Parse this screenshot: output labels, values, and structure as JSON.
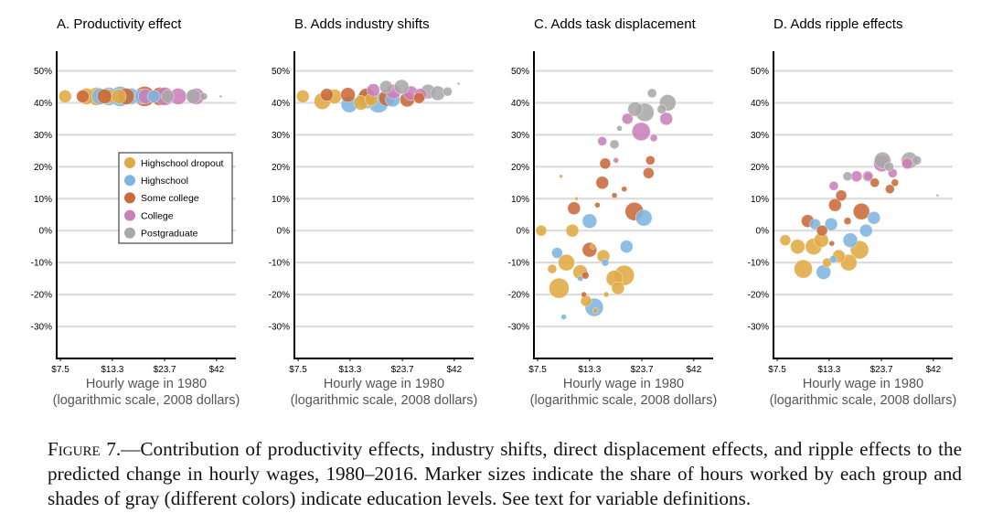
{
  "figure": {
    "caption_label": "Figure 7.",
    "caption_text": "—Contribution of productivity effects, industry shifts, direct displacement effects, and ripple effects to the predicted change in hourly wages, 1980–2016. Marker sizes indicate the share of hours worked by each group and shades of gray (different colors) indicate education levels. See text for variable definitions."
  },
  "colors": {
    "Highschool dropout": "#e0aa43",
    "Highschool": "#7fb5e0",
    "Some college": "#c86a3a",
    "College": "#c97fb7",
    "Postgraduate": "#a9a9a9",
    "grid": "#dcdcdc",
    "axis": "#000000"
  },
  "chart_data": [
    {
      "type": "scatter",
      "title": "A. Productivity effect",
      "xlabel": "Hourly wage in 1980",
      "xlabel2": "(logarithmic scale, 2008 dollars)",
      "x_scale": "log",
      "x_ticks": [
        7.5,
        13.3,
        23.7,
        42
      ],
      "x_tick_labels": [
        "$7.5",
        "$13.3",
        "$23.7",
        "$42"
      ],
      "y_ticks": [
        -30,
        -20,
        -10,
        0,
        10,
        20,
        30,
        40,
        50
      ],
      "y_tick_labels": [
        "-30%",
        "-20%",
        "-10%",
        "0%",
        "10%",
        "20%",
        "30%",
        "40%",
        "50%"
      ],
      "ylim": [
        -40,
        55
      ],
      "xlim": [
        7.2,
        52
      ],
      "grid": true,
      "legend": {
        "position": "center-left",
        "entries": [
          "Highschool dropout",
          "Highschool",
          "Some college",
          "College",
          "Postgraduate"
        ]
      },
      "series": [
        {
          "name": "Highschool dropout",
          "points": [
            {
              "x": 7.9,
              "y": 42,
              "s": 7
            },
            {
              "x": 10.0,
              "y": 42,
              "s": 9
            },
            {
              "x": 11.2,
              "y": 42,
              "s": 10
            },
            {
              "x": 12.7,
              "y": 42,
              "s": 8
            },
            {
              "x": 14.3,
              "y": 42,
              "s": 8
            }
          ]
        },
        {
          "name": "Highschool",
          "points": [
            {
              "x": 11.6,
              "y": 42,
              "s": 9
            },
            {
              "x": 12.8,
              "y": 42,
              "s": 10
            },
            {
              "x": 14.5,
              "y": 42,
              "s": 11
            },
            {
              "x": 16.3,
              "y": 42,
              "s": 9
            },
            {
              "x": 18.5,
              "y": 42,
              "s": 8
            },
            {
              "x": 21.0,
              "y": 42,
              "s": 7
            }
          ]
        },
        {
          "name": "Some college",
          "points": [
            {
              "x": 9.6,
              "y": 42,
              "s": 7
            },
            {
              "x": 12.2,
              "y": 42,
              "s": 8
            },
            {
              "x": 15.5,
              "y": 42,
              "s": 9
            },
            {
              "x": 19.0,
              "y": 42,
              "s": 11
            },
            {
              "x": 22.5,
              "y": 42,
              "s": 10
            }
          ]
        },
        {
          "name": "College",
          "points": [
            {
              "x": 19.2,
              "y": 42,
              "s": 8
            },
            {
              "x": 23.7,
              "y": 42,
              "s": 10
            },
            {
              "x": 27.5,
              "y": 42,
              "s": 9
            },
            {
              "x": 33.5,
              "y": 42,
              "s": 9
            }
          ]
        },
        {
          "name": "Postgraduate",
          "points": [
            {
              "x": 24.5,
              "y": 42,
              "s": 7
            },
            {
              "x": 32.5,
              "y": 42,
              "s": 8
            },
            {
              "x": 36.5,
              "y": 42,
              "s": 4
            },
            {
              "x": 44.0,
              "y": 42,
              "s": 1.5
            }
          ]
        }
      ]
    },
    {
      "type": "scatter",
      "title": "B. Adds industry shifts",
      "xlabel": "Hourly wage in 1980",
      "xlabel2": "(logarithmic scale, 2008 dollars)",
      "x_scale": "log",
      "x_ticks": [
        7.5,
        13.3,
        23.7,
        42
      ],
      "x_tick_labels": [
        "$7.5",
        "$13.3",
        "$23.7",
        "$42"
      ],
      "y_ticks": [
        -30,
        -20,
        -10,
        0,
        10,
        20,
        30,
        40,
        50
      ],
      "y_tick_labels": [
        "-30%",
        "-20%",
        "-10%",
        "0%",
        "10%",
        "20%",
        "30%",
        "40%",
        "50%"
      ],
      "ylim": [
        -40,
        55
      ],
      "xlim": [
        7.2,
        52
      ],
      "grid": true,
      "series": [
        {
          "name": "Highschool dropout",
          "points": [
            {
              "x": 7.9,
              "y": 42,
              "s": 7
            },
            {
              "x": 9.8,
              "y": 40.5,
              "s": 9
            },
            {
              "x": 11.2,
              "y": 42,
              "s": 8
            },
            {
              "x": 15.0,
              "y": 40,
              "s": 8
            },
            {
              "x": 16.8,
              "y": 41,
              "s": 7
            }
          ]
        },
        {
          "name": "Highschool",
          "points": [
            {
              "x": 13.2,
              "y": 39.5,
              "s": 9
            },
            {
              "x": 15.8,
              "y": 41,
              "s": 10
            },
            {
              "x": 18.2,
              "y": 40,
              "s": 11
            },
            {
              "x": 21.3,
              "y": 41,
              "s": 8
            }
          ]
        },
        {
          "name": "Some college",
          "points": [
            {
              "x": 10.3,
              "y": 42.5,
              "s": 7
            },
            {
              "x": 13.0,
              "y": 42.5,
              "s": 8
            },
            {
              "x": 16.0,
              "y": 42,
              "s": 9
            },
            {
              "x": 20.0,
              "y": 41.5,
              "s": 9
            },
            {
              "x": 25.0,
              "y": 41,
              "s": 8
            },
            {
              "x": 28.5,
              "y": 41.5,
              "s": 6
            }
          ]
        },
        {
          "name": "College",
          "points": [
            {
              "x": 17.2,
              "y": 44,
              "s": 7
            },
            {
              "x": 21.5,
              "y": 43.5,
              "s": 8
            },
            {
              "x": 26.0,
              "y": 43,
              "s": 8
            },
            {
              "x": 29.0,
              "y": 42.5,
              "s": 7
            }
          ]
        },
        {
          "name": "Postgraduate",
          "points": [
            {
              "x": 19.8,
              "y": 45,
              "s": 7
            },
            {
              "x": 23.5,
              "y": 45,
              "s": 8
            },
            {
              "x": 31.5,
              "y": 43.5,
              "s": 8
            },
            {
              "x": 35.0,
              "y": 43,
              "s": 8
            },
            {
              "x": 39.0,
              "y": 43.5,
              "s": 5
            },
            {
              "x": 44.0,
              "y": 46,
              "s": 1.5
            }
          ]
        }
      ]
    },
    {
      "type": "scatter",
      "title": "C. Adds task displacement",
      "xlabel": "Hourly wage in 1980",
      "xlabel2": "(logarithmic scale, 2008 dollars)",
      "x_scale": "log",
      "x_ticks": [
        7.5,
        13.3,
        23.7,
        42
      ],
      "x_tick_labels": [
        "$7.5",
        "$13.3",
        "$23.7",
        "$42"
      ],
      "y_ticks": [
        -30,
        -20,
        -10,
        0,
        10,
        20,
        30,
        40,
        50
      ],
      "y_tick_labels": [
        "-30%",
        "-20%",
        "-10%",
        "0%",
        "10%",
        "20%",
        "30%",
        "40%",
        "50%"
      ],
      "ylim": [
        -40,
        55
      ],
      "xlim": [
        7.2,
        52
      ],
      "grid": true,
      "series": [
        {
          "name": "Highschool dropout",
          "points": [
            {
              "x": 7.8,
              "y": 0,
              "s": 6
            },
            {
              "x": 8.8,
              "y": -12,
              "s": 5
            },
            {
              "x": 9.5,
              "y": -18,
              "s": 11
            },
            {
              "x": 10.3,
              "y": -10,
              "s": 9
            },
            {
              "x": 11.0,
              "y": 0,
              "s": 7
            },
            {
              "x": 12.0,
              "y": -13,
              "s": 8
            },
            {
              "x": 12.8,
              "y": -22,
              "s": 6
            },
            {
              "x": 15.5,
              "y": -8,
              "s": 7
            },
            {
              "x": 17.5,
              "y": -15,
              "s": 9
            },
            {
              "x": 19.5,
              "y": -14,
              "s": 11
            },
            {
              "x": 18.2,
              "y": -18,
              "s": 7
            },
            {
              "x": 9.7,
              "y": 17,
              "s": 2
            },
            {
              "x": 13.8,
              "y": -5,
              "s": 3
            },
            {
              "x": 16.0,
              "y": -20,
              "s": 3
            },
            {
              "x": 11.5,
              "y": 10,
              "s": 2
            },
            {
              "x": 14.2,
              "y": -25,
              "s": 3
            }
          ]
        },
        {
          "name": "Highschool",
          "points": [
            {
              "x": 10.0,
              "y": -27,
              "s": 3
            },
            {
              "x": 9.3,
              "y": -7,
              "s": 6
            },
            {
              "x": 13.3,
              "y": 3,
              "s": 8
            },
            {
              "x": 14.0,
              "y": -24,
              "s": 10
            },
            {
              "x": 20.0,
              "y": -5,
              "s": 7
            },
            {
              "x": 24.2,
              "y": 4,
              "s": 9
            },
            {
              "x": 15.8,
              "y": -10,
              "s": 4
            },
            {
              "x": 12.0,
              "y": -15,
              "s": 3
            }
          ]
        },
        {
          "name": "Some college",
          "points": [
            {
              "x": 11.2,
              "y": 7,
              "s": 7
            },
            {
              "x": 13.3,
              "y": -6,
              "s": 8
            },
            {
              "x": 15.3,
              "y": 15,
              "s": 7
            },
            {
              "x": 15.8,
              "y": 21,
              "s": 6
            },
            {
              "x": 21.8,
              "y": 6,
              "s": 10
            },
            {
              "x": 25.5,
              "y": 18,
              "s": 6
            },
            {
              "x": 26.0,
              "y": 22,
              "s": 5
            },
            {
              "x": 12.7,
              "y": -14,
              "s": 4
            },
            {
              "x": 14.5,
              "y": 8,
              "s": 3
            },
            {
              "x": 17.5,
              "y": 11,
              "s": 3
            },
            {
              "x": 19.5,
              "y": 13,
              "s": 3
            },
            {
              "x": 12.5,
              "y": -20,
              "s": 3
            }
          ]
        },
        {
          "name": "College",
          "points": [
            {
              "x": 15.3,
              "y": 28,
              "s": 5
            },
            {
              "x": 20.2,
              "y": 35,
              "s": 6
            },
            {
              "x": 23.5,
              "y": 31,
              "s": 10
            },
            {
              "x": 31.0,
              "y": 35,
              "s": 7
            },
            {
              "x": 27.0,
              "y": 29,
              "s": 4
            },
            {
              "x": 17.8,
              "y": 22,
              "s": 3
            }
          ]
        },
        {
          "name": "Postgraduate",
          "points": [
            {
              "x": 17.5,
              "y": 27,
              "s": 5
            },
            {
              "x": 22.0,
              "y": 38,
              "s": 8
            },
            {
              "x": 24.5,
              "y": 37,
              "s": 10
            },
            {
              "x": 26.5,
              "y": 43,
              "s": 5
            },
            {
              "x": 31.5,
              "y": 40,
              "s": 9
            },
            {
              "x": 29.5,
              "y": 38,
              "s": 5
            },
            {
              "x": 18.5,
              "y": 32,
              "s": 3
            }
          ]
        }
      ]
    },
    {
      "type": "scatter",
      "title": "D. Adds ripple effects",
      "xlabel": "Hourly wage in 1980",
      "xlabel2": "(logarithmic scale, 2008 dollars)",
      "x_scale": "log",
      "x_ticks": [
        7.5,
        13.3,
        23.7,
        42
      ],
      "x_tick_labels": [
        "$7.5",
        "$13.3",
        "$23.7",
        "$42"
      ],
      "y_ticks": [
        -30,
        -20,
        -10,
        0,
        10,
        20,
        30,
        40,
        50
      ],
      "y_tick_labels": [
        "-30%",
        "-20%",
        "-10%",
        "0%",
        "10%",
        "20%",
        "30%",
        "40%",
        "50%"
      ],
      "ylim": [
        -40,
        55
      ],
      "xlim": [
        7.2,
        52
      ],
      "grid": true,
      "series": [
        {
          "name": "Highschool dropout",
          "points": [
            {
              "x": 8.2,
              "y": -3,
              "s": 6
            },
            {
              "x": 9.4,
              "y": -5,
              "s": 8
            },
            {
              "x": 10.0,
              "y": -12,
              "s": 10
            },
            {
              "x": 11.2,
              "y": -5,
              "s": 9
            },
            {
              "x": 12.2,
              "y": -3,
              "s": 8
            },
            {
              "x": 14.8,
              "y": -8,
              "s": 7
            },
            {
              "x": 16.5,
              "y": -10,
              "s": 9
            },
            {
              "x": 18.6,
              "y": -6,
              "s": 10
            },
            {
              "x": 13.0,
              "y": -10,
              "s": 5
            }
          ]
        },
        {
          "name": "Highschool",
          "points": [
            {
              "x": 11.4,
              "y": 2,
              "s": 6
            },
            {
              "x": 12.5,
              "y": -13,
              "s": 8
            },
            {
              "x": 13.6,
              "y": 2,
              "s": 7
            },
            {
              "x": 16.8,
              "y": -3,
              "s": 8
            },
            {
              "x": 20.0,
              "y": 0,
              "s": 7
            },
            {
              "x": 21.8,
              "y": 4,
              "s": 7
            },
            {
              "x": 13.9,
              "y": -9,
              "s": 4
            }
          ]
        },
        {
          "name": "Some college",
          "points": [
            {
              "x": 10.5,
              "y": 3,
              "s": 7
            },
            {
              "x": 12.3,
              "y": 0,
              "s": 6
            },
            {
              "x": 14.2,
              "y": 8,
              "s": 7
            },
            {
              "x": 15.2,
              "y": 11,
              "s": 6
            },
            {
              "x": 19.0,
              "y": 6,
              "s": 9
            },
            {
              "x": 22.0,
              "y": 15,
              "s": 5
            },
            {
              "x": 26.0,
              "y": 13,
              "s": 5
            },
            {
              "x": 27.5,
              "y": 15,
              "s": 4
            },
            {
              "x": 16.3,
              "y": 3,
              "s": 4
            },
            {
              "x": 13.7,
              "y": -4,
              "s": 3
            }
          ]
        },
        {
          "name": "College",
          "points": [
            {
              "x": 14.0,
              "y": 14,
              "s": 5
            },
            {
              "x": 18.0,
              "y": 17,
              "s": 6
            },
            {
              "x": 20.5,
              "y": 17,
              "s": 5
            },
            {
              "x": 23.8,
              "y": 21,
              "s": 9
            },
            {
              "x": 26.8,
              "y": 18,
              "s": 5
            },
            {
              "x": 31.5,
              "y": 21,
              "s": 6
            }
          ]
        },
        {
          "name": "Postgraduate",
          "points": [
            {
              "x": 16.3,
              "y": 17,
              "s": 5
            },
            {
              "x": 20.4,
              "y": 17,
              "s": 6
            },
            {
              "x": 24.0,
              "y": 22,
              "s": 9
            },
            {
              "x": 25.8,
              "y": 20,
              "s": 5
            },
            {
              "x": 32.3,
              "y": 22,
              "s": 9
            },
            {
              "x": 35.0,
              "y": 22,
              "s": 5
            },
            {
              "x": 44.0,
              "y": 11,
              "s": 1.5
            }
          ]
        }
      ]
    }
  ]
}
